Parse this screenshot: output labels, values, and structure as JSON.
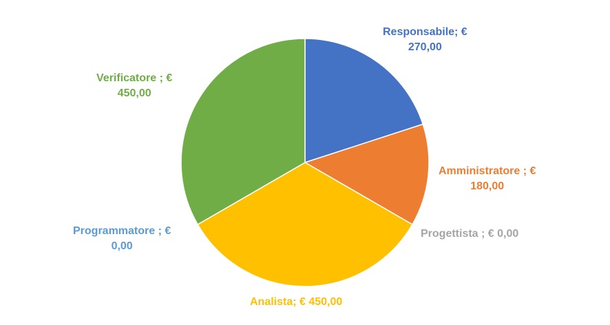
{
  "chart_data": {
    "type": "pie",
    "slices": [
      {
        "name": "Responsabile",
        "value": 270,
        "color": "#4472C4",
        "label_line1": "Responsabile; €",
        "label_line2": "270,00"
      },
      {
        "name": "Amministratore",
        "value": 180,
        "color": "#ED7D31",
        "label_line1": "Amministratore ; €",
        "label_line2": "180,00"
      },
      {
        "name": "Progettista",
        "value": 0,
        "color": "#A5A5A5",
        "label_line1": "Progettista ; € 0,00",
        "label_line2": ""
      },
      {
        "name": "Analista",
        "value": 450,
        "color": "#FFC000",
        "label_line1": "Analista; € 450,00",
        "label_line2": ""
      },
      {
        "name": "Programmatore",
        "value": 0,
        "color": "#5B9BD5",
        "label_line1": "Programmatore ; €",
        "label_line2": "0,00"
      },
      {
        "name": "Verificatore",
        "value": 450,
        "color": "#70AD47",
        "label_line1": "Verificatore ; €",
        "label_line2": "450,00"
      }
    ],
    "start_angle_deg": 0,
    "direction": "clockwise"
  }
}
